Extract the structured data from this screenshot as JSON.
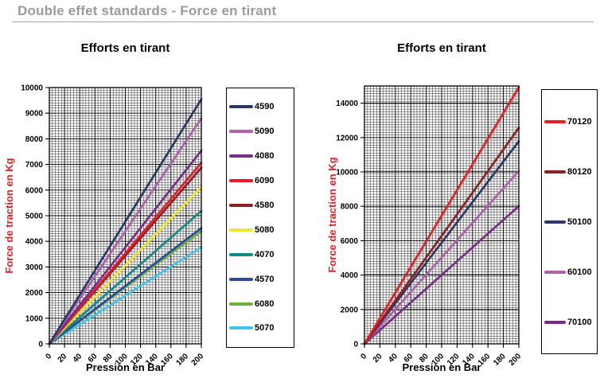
{
  "header": {
    "title": "Double effet standards - Force en tirant"
  },
  "chart_data": [
    {
      "type": "line",
      "title": "Efforts en tirant",
      "xlabel": "Pression en Bar",
      "ylabel": "Force de traction en Kg",
      "xlim": [
        0,
        200
      ],
      "ylim": [
        0,
        10000
      ],
      "xticks": [
        0,
        20,
        40,
        60,
        80,
        100,
        120,
        140,
        160,
        180,
        200
      ],
      "yticks": [
        0,
        1000,
        2000,
        3000,
        4000,
        5000,
        6000,
        7000,
        8000,
        9000,
        10000
      ],
      "x": [
        0,
        200
      ],
      "grid": true,
      "legend_position": "right",
      "series": [
        {
          "name": "4590",
          "color": "#2c3968",
          "values": [
            0,
            9543
          ]
        },
        {
          "name": "5090",
          "color": "#b05fad",
          "values": [
            0,
            8796
          ]
        },
        {
          "name": "4080",
          "color": "#772d85",
          "values": [
            0,
            7540
          ]
        },
        {
          "name": "6090",
          "color": "#ec1c24",
          "values": [
            0,
            7069
          ]
        },
        {
          "name": "4580",
          "color": "#8c2023",
          "values": [
            0,
            6872
          ]
        },
        {
          "name": "5080",
          "color": "#f3e52a",
          "values": [
            0,
            6126
          ]
        },
        {
          "name": "4070",
          "color": "#118a83",
          "values": [
            0,
            5184
          ]
        },
        {
          "name": "4570",
          "color": "#2a4a9e",
          "values": [
            0,
            4516
          ]
        },
        {
          "name": "6080",
          "color": "#69b33d",
          "values": [
            0,
            4398
          ]
        },
        {
          "name": "5070",
          "color": "#3fc4ee",
          "values": [
            0,
            3770
          ]
        }
      ]
    },
    {
      "type": "line",
      "title": "Efforts en tirant",
      "xlabel": "Pression en Bar",
      "ylabel": "Force de traction en Kg",
      "xlim": [
        0,
        200
      ],
      "ylim": [
        0,
        15000
      ],
      "xticks": [
        0,
        20,
        40,
        60,
        80,
        100,
        120,
        140,
        160,
        180,
        200
      ],
      "yticks": [
        0,
        2000,
        4000,
        6000,
        8000,
        10000,
        12000,
        14000
      ],
      "x": [
        0,
        200
      ],
      "grid": true,
      "legend_position": "right",
      "series": [
        {
          "name": "70120",
          "color": "#ec1c24",
          "values": [
            0,
            14923
          ]
        },
        {
          "name": "80120",
          "color": "#8c2023",
          "values": [
            0,
            12566
          ]
        },
        {
          "name": "50100",
          "color": "#2c3968",
          "values": [
            0,
            11781
          ]
        },
        {
          "name": "60100",
          "color": "#b05fad",
          "values": [
            0,
            10053
          ]
        },
        {
          "name": "70100",
          "color": "#772d85",
          "values": [
            0,
            8011
          ]
        }
      ]
    }
  ]
}
